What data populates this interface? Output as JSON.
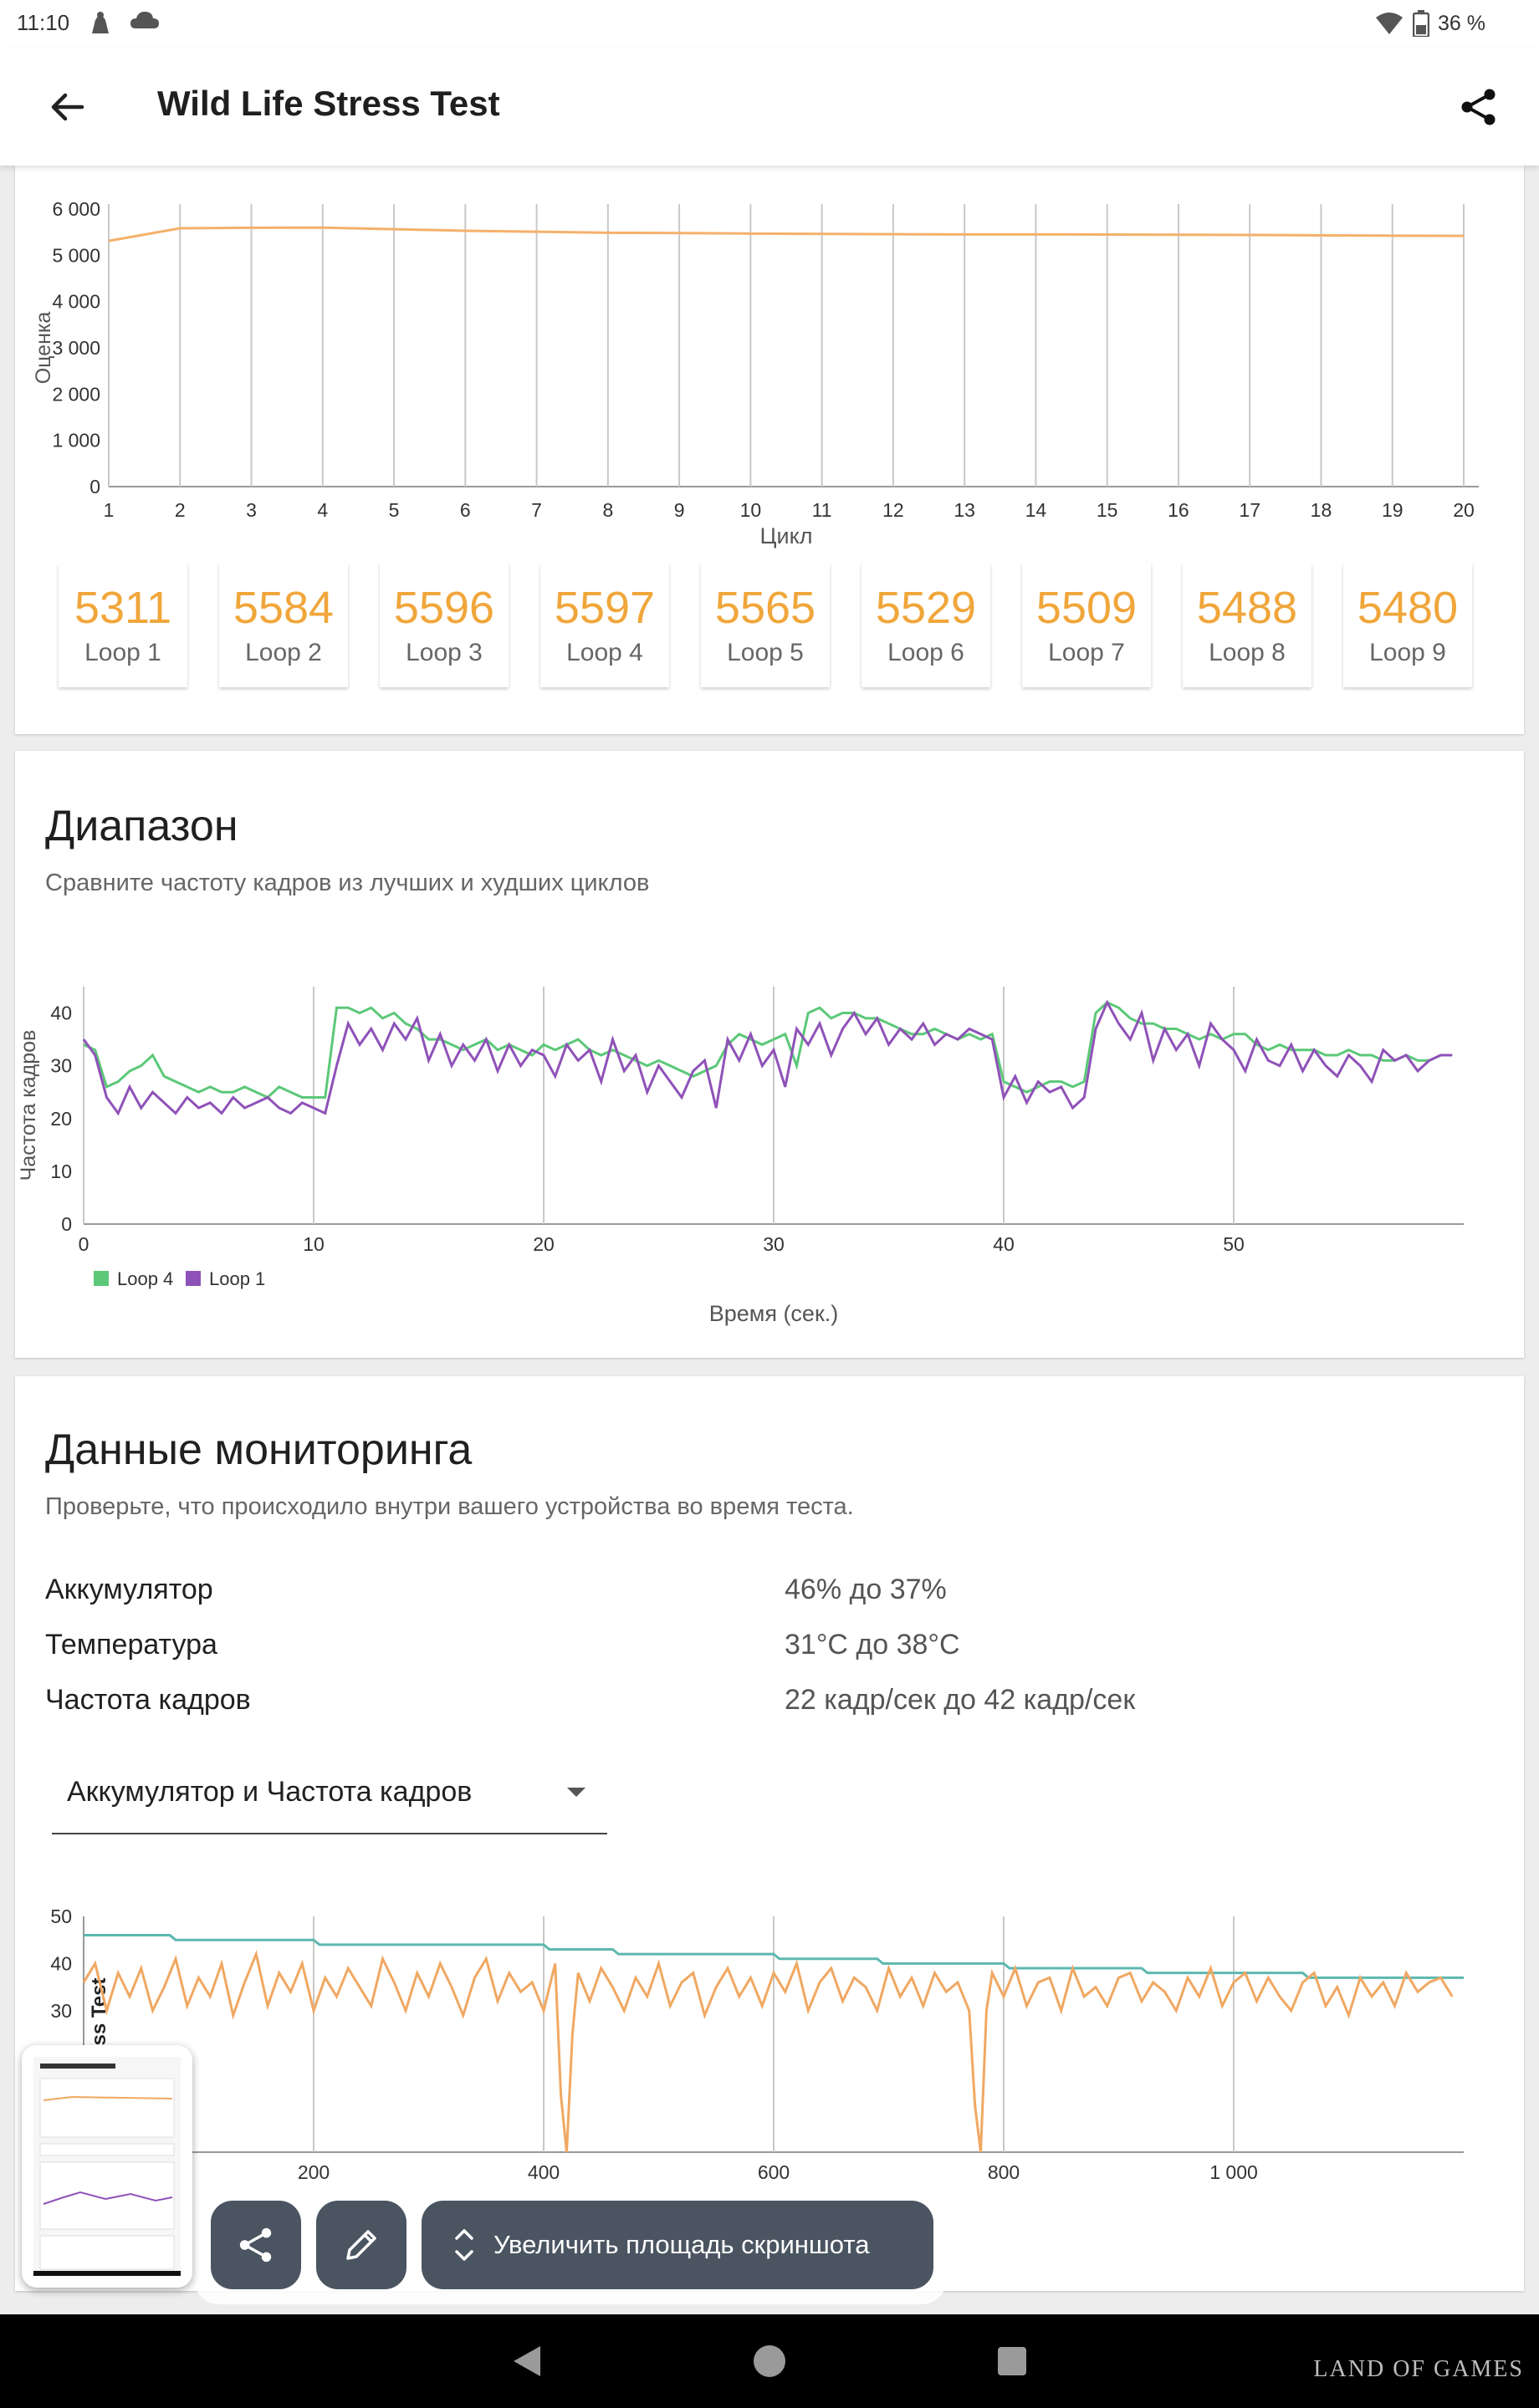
{
  "status": {
    "time": "11:10",
    "battery": "36 %"
  },
  "appbar": {
    "title": "Wild Life Stress Test"
  },
  "score_chart": {
    "chart_data": {
      "type": "line",
      "ylabel": "Оценка",
      "xlabel": "Цикл",
      "ylim": [
        0,
        6000
      ],
      "y_ticks": [
        "0",
        "1 000",
        "2 000",
        "3 000",
        "4 000",
        "5 000",
        "6 000"
      ],
      "x": [
        1,
        2,
        3,
        4,
        5,
        6,
        7,
        8,
        9,
        10,
        11,
        12,
        13,
        14,
        15,
        16,
        17,
        18,
        19,
        20
      ],
      "series": [
        {
          "values": [
            5311,
            5584,
            5596,
            5597,
            5565,
            5529,
            5509,
            5488,
            5480,
            5470,
            5462,
            5455,
            5450,
            5452,
            5448,
            5445,
            5440,
            5430,
            5425,
            5420
          ]
        }
      ],
      "color": "#f5b06b",
      "grid": "vertical"
    }
  },
  "loops": [
    {
      "score": "5311",
      "label": "Loop 1"
    },
    {
      "score": "5584",
      "label": "Loop 2"
    },
    {
      "score": "5596",
      "label": "Loop 3"
    },
    {
      "score": "5597",
      "label": "Loop 4"
    },
    {
      "score": "5565",
      "label": "Loop 5"
    },
    {
      "score": "5529",
      "label": "Loop 6"
    },
    {
      "score": "5509",
      "label": "Loop 7"
    },
    {
      "score": "5488",
      "label": "Loop 8"
    },
    {
      "score": "5480",
      "label": "Loop 9"
    }
  ],
  "range": {
    "title": "Диапазон",
    "subtitle": "Сравните частоту кадров из лучших и худших циклов",
    "chart_data": {
      "type": "line",
      "ylabel": "Частота кадров",
      "xlabel": "Время (сек.)",
      "ylim": [
        0,
        45
      ],
      "xlim": [
        0,
        60
      ],
      "y_ticks": [
        "0",
        "10",
        "20",
        "30",
        "40"
      ],
      "x_ticks": [
        "0",
        "10",
        "20",
        "30",
        "40",
        "50"
      ],
      "legend_position": "bottom-left",
      "series": [
        {
          "name": "Loop 4",
          "color": "#5cc878",
          "x": [
            0,
            0.5,
            1,
            1.5,
            2,
            2.5,
            3,
            3.5,
            4,
            4.5,
            5,
            5.5,
            6,
            6.5,
            7,
            7.5,
            8,
            8.5,
            9,
            9.5,
            10,
            10.5,
            11,
            11.5,
            12,
            12.5,
            13,
            13.5,
            14,
            14.5,
            15,
            15.5,
            16,
            16.5,
            17,
            17.5,
            18,
            18.5,
            19,
            19.5,
            20,
            20.5,
            21,
            21.5,
            22,
            22.5,
            23,
            23.5,
            24,
            24.5,
            25,
            25.5,
            26,
            26.5,
            27,
            27.5,
            28,
            28.5,
            29,
            29.5,
            30,
            30.5,
            31,
            31.5,
            32,
            32.5,
            33,
            33.5,
            34,
            34.5,
            35,
            35.5,
            36,
            36.5,
            37,
            37.5,
            38,
            38.5,
            39,
            39.5,
            40,
            40.5,
            41,
            41.5,
            42,
            42.5,
            43,
            43.5,
            44,
            44.5,
            45,
            45.5,
            46,
            46.5,
            47,
            47.5,
            48,
            48.5,
            49,
            49.5,
            50,
            50.5,
            51,
            51.5,
            52,
            52.5,
            53,
            53.5,
            54,
            54.5,
            55,
            55.5,
            56,
            56.5,
            57,
            57.5,
            58,
            58.5,
            59,
            59.5
          ],
          "values": [
            34,
            33,
            26,
            27,
            29,
            30,
            32,
            28,
            27,
            26,
            25,
            26,
            25,
            25,
            26,
            25,
            24,
            26,
            25,
            24,
            24,
            24,
            41,
            41,
            40,
            41,
            39,
            40,
            38,
            37,
            35,
            35,
            34,
            33,
            34,
            35,
            33,
            34,
            33,
            32,
            34,
            33,
            34,
            35,
            33,
            32,
            33,
            32,
            31,
            30,
            31,
            30,
            29,
            28,
            29,
            30,
            34,
            36,
            35,
            34,
            35,
            36,
            30,
            40,
            41,
            39,
            40,
            40,
            39,
            39,
            38,
            37,
            36,
            36,
            37,
            36,
            35,
            36,
            35,
            36,
            27,
            26,
            25,
            26,
            27,
            27,
            26,
            27,
            40,
            42,
            41,
            39,
            38,
            38,
            37,
            37,
            36,
            35,
            36,
            35,
            36,
            36,
            34,
            33,
            34,
            33,
            33,
            33,
            32,
            32,
            33,
            32,
            32,
            31,
            31,
            32,
            31,
            31,
            32,
            32
          ]
        },
        {
          "name": "Loop 1",
          "color": "#8f52b8",
          "x": [
            0,
            0.5,
            1,
            1.5,
            2,
            2.5,
            3,
            3.5,
            4,
            4.5,
            5,
            5.5,
            6,
            6.5,
            7,
            7.5,
            8,
            8.5,
            9,
            9.5,
            10,
            10.5,
            11,
            11.5,
            12,
            12.5,
            13,
            13.5,
            14,
            14.5,
            15,
            15.5,
            16,
            16.5,
            17,
            17.5,
            18,
            18.5,
            19,
            19.5,
            20,
            20.5,
            21,
            21.5,
            22,
            22.5,
            23,
            23.5,
            24,
            24.5,
            25,
            25.5,
            26,
            26.5,
            27,
            27.5,
            28,
            28.5,
            29,
            29.5,
            30,
            30.5,
            31,
            31.5,
            32,
            32.5,
            33,
            33.5,
            34,
            34.5,
            35,
            35.5,
            36,
            36.5,
            37,
            37.5,
            38,
            38.5,
            39,
            39.5,
            40,
            40.5,
            41,
            41.5,
            42,
            42.5,
            43,
            43.5,
            44,
            44.5,
            45,
            45.5,
            46,
            46.5,
            47,
            47.5,
            48,
            48.5,
            49,
            49.5,
            50,
            50.5,
            51,
            51.5,
            52,
            52.5,
            53,
            53.5,
            54,
            54.5,
            55,
            55.5,
            56,
            56.5,
            57,
            57.5,
            58,
            58.5,
            59,
            59.5
          ],
          "values": [
            35,
            32,
            24,
            21,
            26,
            22,
            25,
            23,
            21,
            24,
            22,
            23,
            21,
            24,
            22,
            23,
            24,
            22,
            21,
            23,
            22,
            21,
            30,
            38,
            34,
            37,
            33,
            38,
            35,
            39,
            31,
            36,
            30,
            34,
            31,
            35,
            29,
            34,
            30,
            33,
            32,
            28,
            34,
            31,
            33,
            27,
            35,
            29,
            32,
            25,
            30,
            27,
            24,
            29,
            31,
            22,
            35,
            31,
            36,
            30,
            33,
            26,
            37,
            34,
            38,
            32,
            37,
            40,
            36,
            39,
            34,
            37,
            35,
            38,
            34,
            36,
            35,
            37,
            36,
            35,
            24,
            28,
            23,
            27,
            25,
            26,
            22,
            24,
            37,
            42,
            38,
            35,
            40,
            31,
            37,
            33,
            36,
            30,
            38,
            35,
            33,
            29,
            35,
            31,
            30,
            34,
            29,
            33,
            30,
            28,
            32,
            30,
            27,
            33,
            31,
            32,
            29,
            31,
            32,
            32
          ]
        }
      ]
    }
  },
  "monitoring": {
    "title": "Данные мониторинга",
    "subtitle": "Проверьте, что происходило внутри вашего устройства во время теста.",
    "rows": [
      {
        "label": "Аккумулятор",
        "value": "46% до 37%"
      },
      {
        "label": "Температура",
        "value": "31°C до 38°C"
      },
      {
        "label": "Частота кадров",
        "value": "22 кадр/сек до 42 кадр/сек"
      }
    ],
    "dropdown": {
      "selected": "Аккумулятор и Частота кадров"
    },
    "chart_data": {
      "type": "line",
      "ylabel": "ss Test",
      "ylim": [
        0,
        50
      ],
      "xlim": [
        0,
        1200
      ],
      "y_ticks": [
        "30",
        "40",
        "50"
      ],
      "x_ticks": [
        "200",
        "400",
        "600",
        "800",
        "1 000"
      ],
      "series": [
        {
          "color": "#5db8b0",
          "x": [
            0,
            75,
            80,
            200,
            205,
            400,
            405,
            460,
            465,
            600,
            605,
            690,
            695,
            800,
            805,
            920,
            925,
            1060,
            1065,
            1200
          ],
          "values": [
            46,
            46,
            45,
            45,
            44,
            44,
            43,
            43,
            42,
            42,
            41,
            41,
            40,
            40,
            39,
            39,
            38,
            38,
            37,
            37
          ]
        },
        {
          "color": "#f0a862",
          "x": [
            0,
            10,
            20,
            30,
            40,
            50,
            60,
            70,
            80,
            90,
            100,
            110,
            120,
            130,
            140,
            150,
            160,
            170,
            180,
            190,
            200,
            210,
            220,
            230,
            240,
            250,
            260,
            270,
            280,
            290,
            300,
            310,
            320,
            330,
            340,
            350,
            360,
            370,
            380,
            390,
            400,
            410,
            415,
            420,
            425,
            430,
            440,
            450,
            460,
            470,
            480,
            490,
            500,
            510,
            520,
            530,
            540,
            550,
            560,
            570,
            580,
            590,
            600,
            610,
            620,
            630,
            640,
            650,
            660,
            670,
            680,
            690,
            700,
            710,
            720,
            730,
            740,
            750,
            760,
            770,
            775,
            780,
            785,
            790,
            800,
            810,
            820,
            830,
            840,
            850,
            860,
            870,
            880,
            890,
            900,
            910,
            920,
            930,
            940,
            950,
            960,
            970,
            980,
            990,
            1000,
            1010,
            1020,
            1030,
            1040,
            1050,
            1060,
            1070,
            1080,
            1090,
            1100,
            1110,
            1120,
            1130,
            1140,
            1150,
            1160,
            1170,
            1180,
            1190
          ],
          "values": [
            36,
            40,
            30,
            38,
            33,
            39,
            30,
            35,
            41,
            31,
            37,
            33,
            40,
            29,
            36,
            42,
            31,
            38,
            34,
            40,
            30,
            37,
            33,
            39,
            35,
            31,
            41,
            36,
            30,
            38,
            33,
            40,
            35,
            29,
            37,
            41,
            32,
            38,
            34,
            36,
            30,
            40,
            12,
            0,
            25,
            38,
            32,
            39,
            35,
            30,
            37,
            33,
            40,
            31,
            36,
            38,
            29,
            35,
            39,
            33,
            37,
            31,
            38,
            34,
            40,
            30,
            36,
            39,
            32,
            37,
            35,
            30,
            39,
            33,
            37,
            31,
            38,
            34,
            36,
            30,
            10,
            0,
            30,
            38,
            33,
            39,
            31,
            36,
            37,
            30,
            39,
            33,
            35,
            31,
            37,
            38,
            32,
            36,
            34,
            30,
            37,
            33,
            39,
            31,
            36,
            38,
            32,
            37,
            33,
            30,
            36,
            38,
            31,
            35,
            29,
            37,
            33,
            36,
            31,
            38,
            34,
            36,
            37,
            33
          ]
        }
      ]
    }
  },
  "overlay": {
    "expand_label": "Увеличить площадь скриншота"
  },
  "watermark": "LAND OF GAMES"
}
